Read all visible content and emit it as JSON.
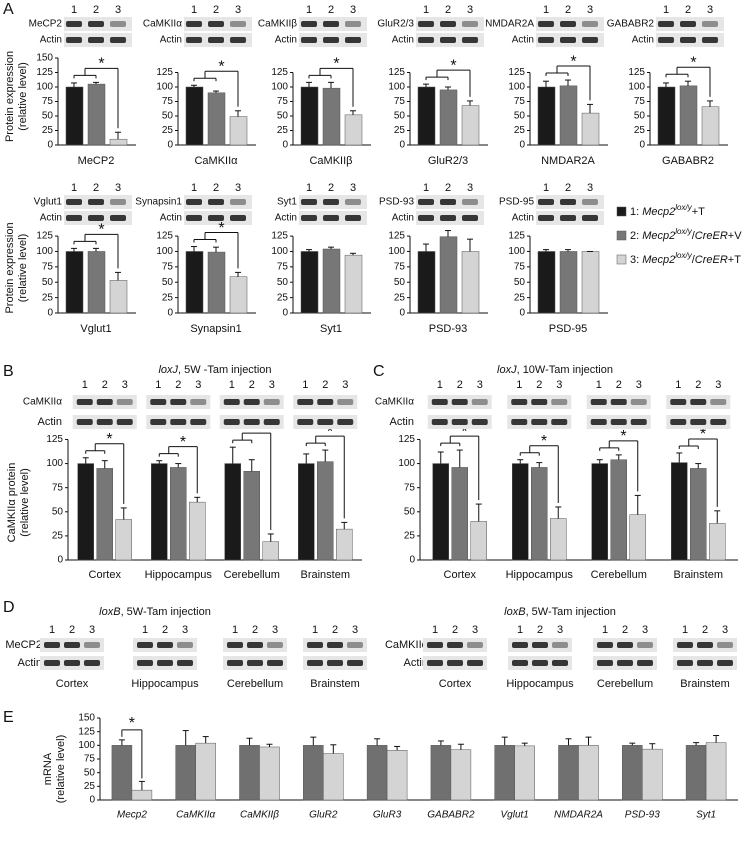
{
  "panel_labels": [
    "A",
    "B",
    "C",
    "D",
    "E"
  ],
  "lanes": [
    "1",
    "2",
    "3"
  ],
  "legend": [
    {
      "color": "#1a1a1a",
      "parts": [
        {
          "text": "1: "
        },
        {
          "text": "Mecp2",
          "style": "italic"
        },
        {
          "text": "lox/y",
          "style": "sup"
        },
        {
          "text": "+T"
        }
      ]
    },
    {
      "color": "#777777",
      "parts": [
        {
          "text": "2: "
        },
        {
          "text": "Mecp2",
          "style": "italic"
        },
        {
          "text": "lox/y",
          "style": "sup"
        },
        {
          "text": "/"
        },
        {
          "text": "CreER",
          "style": "italic"
        },
        {
          "text": "+V"
        }
      ]
    },
    {
      "color": "#d4d4d4",
      "parts": [
        {
          "text": "3: "
        },
        {
          "text": "Mecp2",
          "style": "italic"
        },
        {
          "text": "lox/y",
          "style": "sup"
        },
        {
          "text": "/"
        },
        {
          "text": "CreER",
          "style": "italic"
        },
        {
          "text": "+T"
        }
      ]
    }
  ],
  "chart_data": [
    {
      "type": "bar",
      "ylabel": [
        "Protein expression",
        "(relative level)"
      ],
      "label": "MeCP2",
      "blot": [
        "MeCP2",
        "Actin"
      ],
      "values": [
        100,
        105,
        10
      ],
      "errors": [
        7,
        3,
        12
      ],
      "ylim": [
        0,
        150
      ],
      "yticks": [
        0,
        25,
        50,
        75,
        100,
        125,
        150
      ],
      "sig": "*"
    },
    {
      "type": "bar",
      "label": "CaMKIIα",
      "blot": [
        "CaMKIIα",
        "Actin"
      ],
      "values": [
        100,
        90,
        49
      ],
      "errors": [
        3,
        3,
        10
      ],
      "ylim": [
        0,
        150
      ],
      "yticks": [
        0,
        25,
        50,
        75,
        100,
        125
      ],
      "sig": "*"
    },
    {
      "type": "bar",
      "label": "CaMKIIβ",
      "blot": [
        "CaMKIIβ",
        "Actin"
      ],
      "values": [
        100,
        98,
        52
      ],
      "errors": [
        8,
        10,
        7
      ],
      "ylim": [
        0,
        150
      ],
      "yticks": [
        0,
        25,
        50,
        75,
        100,
        125
      ],
      "sig": "*"
    },
    {
      "type": "bar",
      "label": "GluR2/3",
      "blot": [
        "GluR2/3",
        "Actin"
      ],
      "values": [
        100,
        95,
        68
      ],
      "errors": [
        5,
        5,
        8
      ],
      "ylim": [
        0,
        150
      ],
      "yticks": [
        0,
        25,
        50,
        75,
        100,
        125
      ],
      "sig": "*"
    },
    {
      "type": "bar",
      "label": "NMDAR2A",
      "blot": [
        "NMDAR2A",
        "Actin"
      ],
      "values": [
        100,
        102,
        55
      ],
      "errors": [
        10,
        10,
        15
      ],
      "ylim": [
        0,
        150
      ],
      "yticks": [
        0,
        25,
        50,
        75,
        100,
        125
      ],
      "sig": "*"
    },
    {
      "type": "bar",
      "label": "GABABR2",
      "blot": [
        "GABABR2",
        "Actin"
      ],
      "values": [
        100,
        102,
        66
      ],
      "errors": [
        7,
        8,
        10
      ],
      "ylim": [
        0,
        150
      ],
      "yticks": [
        0,
        25,
        50,
        75,
        100,
        125
      ],
      "sig": "*"
    },
    {
      "type": "bar",
      "ylabel": [
        "Protein expression",
        "(relative level)"
      ],
      "label": "Vglut1",
      "blot": [
        "Vglut1",
        "Actin"
      ],
      "values": [
        100,
        100,
        53
      ],
      "errors": [
        5,
        5,
        13
      ],
      "ylim": [
        0,
        130
      ],
      "yticks": [
        0,
        25,
        50,
        75,
        100,
        125
      ],
      "sig": "*"
    },
    {
      "type": "bar",
      "label": "Synapsin1",
      "blot": [
        "Synapsin1",
        "Actin"
      ],
      "values": [
        100,
        99,
        59
      ],
      "errors": [
        8,
        8,
        7
      ],
      "ylim": [
        0,
        130
      ],
      "yticks": [
        0,
        25,
        50,
        75,
        100,
        125
      ],
      "sig": "*"
    },
    {
      "type": "bar",
      "label": "Syt1",
      "blot": [
        "Syt1",
        "Actin"
      ],
      "values": [
        100,
        104,
        94
      ],
      "errors": [
        3,
        3,
        3
      ],
      "ylim": [
        0,
        130
      ],
      "yticks": [
        0,
        25,
        50,
        75,
        100,
        125
      ]
    },
    {
      "type": "bar",
      "label": "PSD-93",
      "blot": [
        "PSD-93",
        "Actin"
      ],
      "values": [
        100,
        124,
        100
      ],
      "errors": [
        12,
        10,
        20
      ],
      "ylim": [
        0,
        130
      ],
      "yticks": [
        0,
        25,
        50,
        75,
        100,
        125
      ]
    },
    {
      "type": "bar",
      "label": "PSD-95",
      "blot": [
        "PSD-95",
        "Actin"
      ],
      "values": [
        100,
        100,
        100
      ],
      "errors": [
        3,
        3,
        0
      ],
      "ylim": [
        0,
        130
      ],
      "yticks": [
        0,
        25,
        50,
        75,
        100,
        125
      ]
    },
    {
      "type": "grouped_bar",
      "title": [
        {
          "text": "loxJ",
          "style": "italic"
        },
        {
          "text": ", 5W -Tam injection"
        }
      ],
      "ylabel": [
        "CaMKIIα protein",
        "(relative level)"
      ],
      "blot": [
        "CaMKIIα",
        "Actin"
      ],
      "categories": [
        "Cortex",
        "Hippocampus",
        "Cerebellum",
        "Brainstem"
      ],
      "series": [
        {
          "color": "#1a1a1a",
          "values": [
            100,
            100,
            100,
            100
          ],
          "errors": [
            6,
            3,
            17,
            10
          ]
        },
        {
          "color": "#777777",
          "values": [
            95,
            96,
            92,
            102
          ],
          "errors": [
            8,
            4,
            12,
            12
          ]
        },
        {
          "color": "#d4d4d4",
          "values": [
            42,
            60,
            19,
            32
          ],
          "errors": [
            12,
            5,
            8,
            7
          ]
        }
      ],
      "ylim": [
        0,
        140
      ],
      "yticks": [
        0,
        25,
        50,
        75,
        100,
        125
      ],
      "sig": [
        "*",
        "*",
        "*",
        "*"
      ]
    },
    {
      "type": "grouped_bar",
      "title": [
        {
          "text": "loxJ",
          "style": "italic"
        },
        {
          "text": ", 10W-Tam injection"
        }
      ],
      "blot": [
        "CaMKIIα",
        "Actin"
      ],
      "categories": [
        "Cortex",
        "Hippocampus",
        "Cerebellum",
        "Brainstem"
      ],
      "series": [
        {
          "color": "#1a1a1a",
          "values": [
            100,
            100,
            100,
            101
          ],
          "errors": [
            12,
            4,
            4,
            10
          ]
        },
        {
          "color": "#777777",
          "values": [
            96,
            96,
            104,
            95
          ],
          "errors": [
            18,
            5,
            5,
            5
          ]
        },
        {
          "color": "#d4d4d4",
          "values": [
            40,
            43,
            47,
            38
          ],
          "errors": [
            18,
            12,
            20,
            13
          ]
        }
      ],
      "ylim": [
        0,
        140
      ],
      "yticks": [
        0,
        25,
        50,
        75,
        100,
        125
      ],
      "sig": [
        "*",
        "*",
        "*",
        "*"
      ]
    },
    {
      "type": "grouped_bar",
      "ylabel": [
        "mRNA",
        "(relative level)"
      ],
      "categories": [
        "Mecp2",
        "CaMKIIα",
        "CaMKIIβ",
        "GluR2",
        "GluR3",
        "GABABR2",
        "Vglut1",
        "NMDAR2A",
        "PSD-93",
        "Syt1"
      ],
      "series": [
        {
          "color": "#707070",
          "values": [
            100,
            100,
            100,
            100,
            100,
            100,
            100,
            100,
            100,
            100
          ],
          "errors": [
            10,
            27,
            13,
            15,
            12,
            8,
            15,
            12,
            4,
            5
          ]
        },
        {
          "color": "#d4d4d4",
          "values": [
            18,
            104,
            97,
            85,
            91,
            92,
            99,
            100,
            93,
            105
          ],
          "errors": [
            16,
            12,
            5,
            16,
            7,
            10,
            5,
            15,
            10,
            13
          ]
        }
      ],
      "ylim": [
        0,
        150
      ],
      "yticks": [
        0,
        25,
        50,
        75,
        100,
        125,
        150
      ],
      "sig": {
        "index": 0,
        "text": "*"
      }
    }
  ],
  "blot_panels": [
    {
      "title": [
        {
          "text": "loxB",
          "style": "italic"
        },
        {
          "text": ", 5W-Tam injection"
        }
      ],
      "rows": [
        "MeCP2",
        "Actin"
      ],
      "tissues": [
        "Cortex",
        "Hippocampus",
        "Cerebellum",
        "Brainstem"
      ]
    },
    {
      "title": [
        {
          "text": "loxB",
          "style": "italic"
        },
        {
          "text": ", 5W-Tam injection"
        }
      ],
      "rows": [
        "CaMKIIα",
        "Actin"
      ],
      "tissues": [
        "Cortex",
        "Hippocampus",
        "Cerebellum",
        "Brainstem"
      ]
    }
  ]
}
